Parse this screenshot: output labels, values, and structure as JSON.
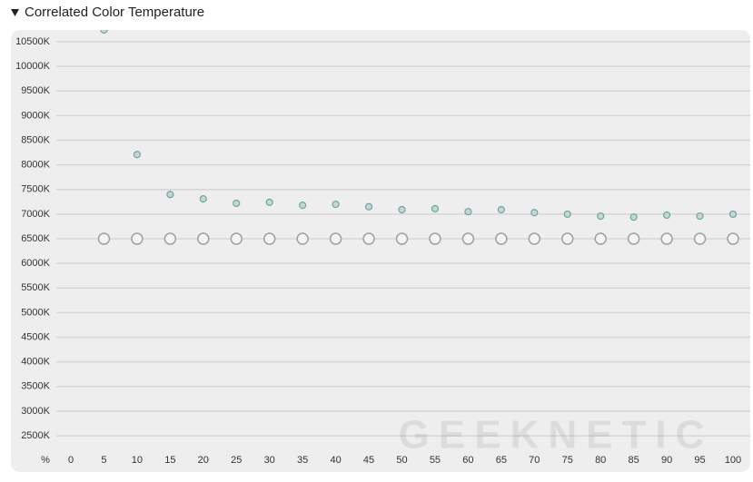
{
  "chart_data": {
    "type": "scatter",
    "title": "Correlated Color Temperature",
    "x_label": "%",
    "watermark": "GEEKNETIC",
    "x": [
      5,
      10,
      15,
      20,
      25,
      30,
      35,
      40,
      45,
      50,
      55,
      60,
      65,
      70,
      75,
      80,
      85,
      90,
      95,
      100
    ],
    "series": [
      {
        "color": "#6fa5a0",
        "values": [
          10740,
          8210,
          7400,
          7310,
          7220,
          7240,
          7180,
          7200,
          7150,
          7090,
          7110,
          7050,
          7090,
          7030,
          7000,
          6960,
          6940,
          6980,
          6960,
          7000
        ]
      },
      {
        "color": "#a0a0a0",
        "values": [
          6500,
          6500,
          6500,
          6500,
          6500,
          6500,
          6500,
          6500,
          6500,
          6500,
          6500,
          6500,
          6500,
          6500,
          6500,
          6500,
          6500,
          6500,
          6500,
          6500
        ]
      }
    ],
    "xlim": [
      0,
      100
    ],
    "xticks": [
      0,
      5,
      10,
      15,
      20,
      25,
      30,
      35,
      40,
      45,
      50,
      55,
      60,
      65,
      70,
      75,
      80,
      85,
      90,
      95,
      100
    ],
    "ylim": [
      2280,
      10740
    ],
    "yticks": [
      {
        "value": 2500,
        "label": "2500K"
      },
      {
        "value": 3000,
        "label": "3000K"
      },
      {
        "value": 3500,
        "label": "3500K"
      },
      {
        "value": 4000,
        "label": "4000K"
      },
      {
        "value": 4500,
        "label": "4500K"
      },
      {
        "value": 5000,
        "label": "5000K"
      },
      {
        "value": 5500,
        "label": "5500K"
      },
      {
        "value": 6000,
        "label": "6000K"
      },
      {
        "value": 6500,
        "label": "6500K"
      },
      {
        "value": 7000,
        "label": "7000K"
      },
      {
        "value": 7500,
        "label": "7500K"
      },
      {
        "value": 8000,
        "label": "8000K"
      },
      {
        "value": 8500,
        "label": "8500K"
      },
      {
        "value": 9000,
        "label": "9000K"
      },
      {
        "value": 9500,
        "label": "9500K"
      },
      {
        "value": 10000,
        "label": "10000K"
      },
      {
        "value": 10500,
        "label": "10500K"
      }
    ],
    "grid": true
  }
}
